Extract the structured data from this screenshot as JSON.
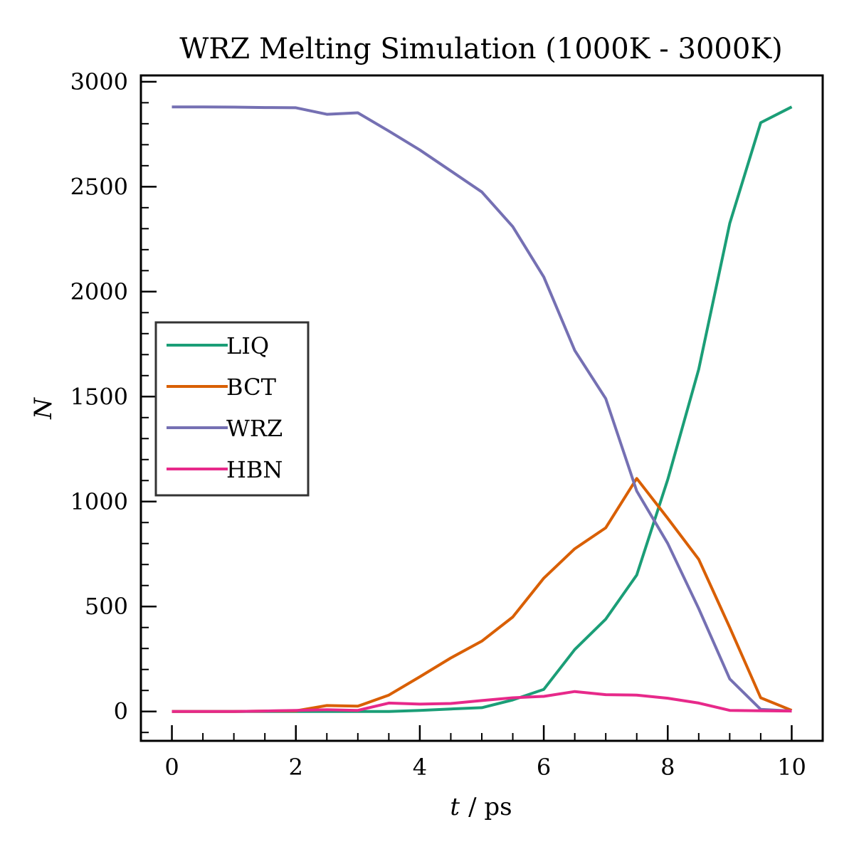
{
  "chart_data": {
    "type": "line",
    "title": "WRZ Melting Simulation (1000K - 3000K)",
    "xlabel_var": "t",
    "xlabel_unit": "/ ps",
    "ylabel": "N",
    "xlim": [
      -0.5,
      10.5
    ],
    "ylim": [
      -140,
      3030
    ],
    "xticks": [
      0,
      2,
      4,
      6,
      8,
      10
    ],
    "yticks": [
      0,
      500,
      1000,
      1500,
      2000,
      2500,
      3000
    ],
    "legend_position": "center-left",
    "grid": false,
    "x": [
      0,
      0.5,
      1,
      1.5,
      2,
      2.5,
      3,
      3.5,
      4,
      4.5,
      5,
      5.5,
      6,
      6.5,
      7,
      7.5,
      8,
      8.5,
      9,
      9.5,
      10
    ],
    "series": [
      {
        "name": "LIQ",
        "color": "#1b9e77",
        "values": [
          0,
          0,
          0,
          0,
          0,
          0,
          0,
          0,
          5,
          12,
          18,
          55,
          105,
          295,
          440,
          650,
          1105,
          1630,
          2325,
          2805,
          2880
        ]
      },
      {
        "name": "BCT",
        "color": "#d95f02",
        "values": [
          0,
          0,
          0,
          2,
          3,
          28,
          25,
          78,
          165,
          255,
          335,
          450,
          635,
          775,
          875,
          1110,
          920,
          725,
          400,
          65,
          5
        ]
      },
      {
        "name": "WRZ",
        "color": "#7570b3",
        "values": [
          2880,
          2880,
          2879,
          2877,
          2876,
          2845,
          2852,
          2765,
          2675,
          2575,
          2475,
          2310,
          2070,
          1720,
          1490,
          1050,
          800,
          490,
          155,
          10,
          2
        ]
      },
      {
        "name": "HBN",
        "color": "#e7298a",
        "values": [
          0,
          0,
          0,
          2,
          5,
          8,
          5,
          40,
          35,
          38,
          52,
          65,
          72,
          95,
          80,
          78,
          63,
          40,
          5,
          3,
          2
        ]
      }
    ]
  }
}
